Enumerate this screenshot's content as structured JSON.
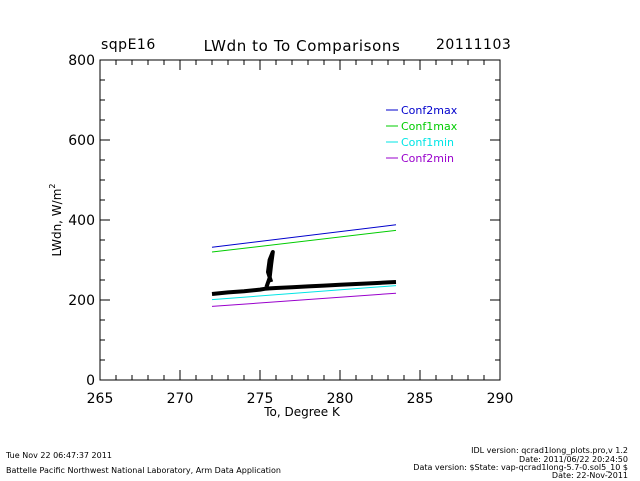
{
  "header": {
    "site": "sqpE16",
    "date": "20111103"
  },
  "footer": {
    "timestamp": "Tue Nov 22 06:47:37 2011",
    "organization": "Battelle Pacific Northwest National Laboratory, Arm Data Application",
    "idl_version": "IDL version: qcrad1long_plots.pro,v 1.2",
    "idl_date": "Date: 2011/06/22 20:24:50",
    "data_version": "Data version: $State: vap-qcrad1long-5.7-0.sol5_10 $",
    "data_date": "Date: 22-Nov-2011"
  },
  "colors": {
    "Conf2max": "#0000cc",
    "Conf1max": "#00cc00",
    "Conf1min": "#00e5e5",
    "Conf2min": "#9900cc",
    "observed": "#000000"
  },
  "chart_data": {
    "type": "line",
    "title": "LWdn to To Comparisons",
    "xlabel": "To, Degree K",
    "ylabel": "LWdn, W/m",
    "ylabel_superscript": "2",
    "xlim": [
      265,
      290
    ],
    "ylim": [
      0,
      800
    ],
    "xticks": [
      265,
      270,
      275,
      280,
      285,
      290
    ],
    "yticks": [
      0,
      200,
      400,
      600,
      800
    ],
    "x_minor_step": 1,
    "y_minor_step": 50,
    "grid": false,
    "legend_position": "top-right",
    "series": [
      {
        "name": "Conf2max",
        "x": [
          272,
          283.5
        ],
        "values": [
          332,
          388
        ]
      },
      {
        "name": "Conf1max",
        "x": [
          272,
          283.5
        ],
        "values": [
          320,
          374
        ]
      },
      {
        "name": "Conf1min",
        "x": [
          272,
          283.5
        ],
        "values": [
          201,
          236
        ]
      },
      {
        "name": "Conf2min",
        "x": [
          272,
          283.5
        ],
        "values": [
          184,
          217
        ]
      }
    ],
    "observed": {
      "x": [
        272,
        273,
        274,
        275,
        275.3,
        275.6,
        276,
        277,
        278,
        279,
        280,
        281,
        282,
        283,
        283.5
      ],
      "values": [
        215,
        219,
        222,
        226,
        228,
        229,
        230,
        232,
        234,
        236,
        238,
        240,
        242,
        244,
        245
      ],
      "spike_x": [
        275.4,
        275.6,
        275.7,
        275.8,
        275.6,
        275.5,
        275.7
      ],
      "spike_values": [
        232,
        255,
        290,
        320,
        300,
        270,
        245
      ]
    }
  }
}
